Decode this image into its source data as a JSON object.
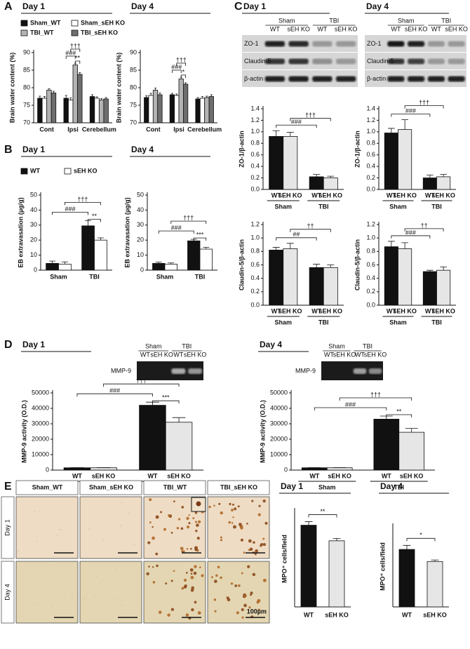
{
  "panels": [
    "A",
    "B",
    "C",
    "D",
    "E"
  ],
  "chart_data": [
    {
      "type": "bar",
      "title": "Day 1",
      "ylabel": "Brain water content (%)",
      "categories": [
        "Cont",
        "Ipsi",
        "Cerebellum"
      ],
      "series": [
        {
          "name": "Sham_WT",
          "color": "#111111",
          "values": [
            77,
            77,
            77.5
          ],
          "errors": [
            0.6,
            0.8,
            0.5
          ]
        },
        {
          "name": "Sham_sEH KO",
          "color": "#ffffff",
          "values": [
            77,
            76.5,
            77
          ],
          "errors": [
            0.5,
            0.6,
            0.4
          ]
        },
        {
          "name": "TBI_WT",
          "color": "#b3b3b3",
          "values": [
            79.3,
            86.5,
            76.5
          ],
          "errors": [
            0.4,
            0.5,
            0.4
          ]
        },
        {
          "name": "TBI_sEH KO",
          "color": "#6e6e6e",
          "values": [
            78.5,
            83.8,
            76.8
          ],
          "errors": [
            0.5,
            0.5,
            0.4
          ]
        }
      ],
      "ylim": [
        70,
        90
      ],
      "yticks": [
        70,
        75,
        80,
        85,
        90
      ],
      "annotations": [
        "###",
        "**",
        "†††"
      ],
      "legend": "top"
    },
    {
      "type": "bar",
      "title": "Day 4",
      "ylabel": "Brain water content (%)",
      "categories": [
        "Cont",
        "Ipsi",
        "Cerebellum"
      ],
      "series": [
        {
          "color": "#111111",
          "values": [
            77.2,
            78,
            76.8
          ],
          "errors": [
            0.5,
            0.4,
            0.4
          ]
        },
        {
          "color": "#ffffff",
          "values": [
            77.8,
            77.8,
            77
          ],
          "errors": [
            0.6,
            0.4,
            0.5
          ]
        },
        {
          "color": "#b3b3b3",
          "values": [
            79.3,
            82.5,
            77.2
          ],
          "errors": [
            0.6,
            0.5,
            0.4
          ]
        },
        {
          "color": "#6e6e6e",
          "values": [
            78,
            81,
            77.5
          ],
          "errors": [
            0.5,
            0.4,
            0.5
          ]
        }
      ],
      "ylim": [
        70,
        90
      ],
      "yticks": [
        70,
        75,
        80,
        85,
        90
      ],
      "annotations": [
        "###",
        "*",
        "†††"
      ]
    },
    {
      "type": "bar",
      "title": "Day 1",
      "ylabel": "EB extravasation (µg/g)",
      "categories": [
        "Sham",
        "TBI"
      ],
      "series": [
        {
          "name": "WT",
          "color": "#111111",
          "values": [
            4.5,
            29.5
          ],
          "errors": [
            1.5,
            3.5
          ]
        },
        {
          "name": "sEH KO",
          "color": "#ffffff",
          "values": [
            4,
            20
          ],
          "errors": [
            1.5,
            1.5
          ]
        }
      ],
      "ylim": [
        0,
        50
      ],
      "yticks": [
        0,
        10,
        20,
        30,
        40,
        50
      ],
      "annotations": [
        "###",
        "†††",
        "**"
      ],
      "legend": "top"
    },
    {
      "type": "bar",
      "title": "Day 4",
      "ylabel": "EB extravasation (µg/g)",
      "categories": [
        "Sham",
        "TBI"
      ],
      "series": [
        {
          "color": "#111111",
          "values": [
            4.5,
            19.5
          ],
          "errors": [
            0.8,
            1
          ]
        },
        {
          "color": "#ffffff",
          "values": [
            4,
            14
          ],
          "errors": [
            0.8,
            1.2
          ]
        }
      ],
      "ylim": [
        0,
        50
      ],
      "yticks": [
        0,
        10,
        20,
        30,
        40,
        50
      ],
      "annotations": [
        "###",
        "†††",
        "***"
      ]
    },
    {
      "type": "bar",
      "ylabel": "ZO-1/β-actin",
      "categories": [
        "Sham",
        "TBI"
      ],
      "bar_labels": [
        "WT",
        "sEH KO"
      ],
      "series": [
        {
          "color": "#111111",
          "values": [
            0.92,
            0.22
          ],
          "errors": [
            0.1,
            0.04
          ]
        },
        {
          "color": "#e6e6e6",
          "values": [
            0.92,
            0.2
          ],
          "errors": [
            0.07,
            0.03
          ]
        }
      ],
      "ylim": [
        0,
        1.4
      ],
      "yticks": [
        {
          "value": 0,
          "label": "0.0"
        },
        0.2,
        0.4,
        0.6,
        0.8,
        {
          "value": 1,
          "label": "1.0"
        },
        1.2,
        1.4
      ],
      "annotations": [
        "###",
        "†††"
      ]
    },
    {
      "type": "bar",
      "ylabel": "ZO-1/β-actin",
      "categories": [
        "Sham",
        "TBI"
      ],
      "bar_labels": [
        "WT",
        "sEH KO"
      ],
      "series": [
        {
          "color": "#111111",
          "values": [
            0.98,
            0.2
          ],
          "errors": [
            0.08,
            0.05
          ]
        },
        {
          "color": "#e6e6e6",
          "values": [
            1.04,
            0.22
          ],
          "errors": [
            0.17,
            0.04
          ]
        }
      ],
      "ylim": [
        0,
        1.4
      ],
      "yticks": [
        {
          "value": 0,
          "label": "0.0"
        },
        0.2,
        0.4,
        0.6,
        0.8,
        {
          "value": 1,
          "label": "1.0"
        },
        1.2,
        1.4
      ],
      "annotations": [
        "###",
        "†††"
      ]
    },
    {
      "type": "bar",
      "ylabel": "Claudin-5/β-actin",
      "categories": [
        "Sham",
        "TBI"
      ],
      "bar_labels": [
        "WT",
        "sEH KO"
      ],
      "series": [
        {
          "color": "#111111",
          "values": [
            0.82,
            0.56
          ],
          "errors": [
            0.04,
            0.05
          ]
        },
        {
          "color": "#e6e6e6",
          "values": [
            0.84,
            0.56
          ],
          "errors": [
            0.08,
            0.04
          ]
        }
      ],
      "ylim": [
        0,
        1.2
      ],
      "yticks": [
        {
          "value": 0,
          "label": "0.0"
        },
        0.2,
        0.4,
        0.6,
        0.8,
        {
          "value": 1,
          "label": "1.0"
        },
        1.2
      ],
      "annotations": [
        "##",
        "††"
      ]
    },
    {
      "type": "bar",
      "ylabel": "Claudin-5/β-actin",
      "categories": [
        "Sham",
        "TBI"
      ],
      "bar_labels": [
        "WT",
        "sEH KO"
      ],
      "series": [
        {
          "color": "#111111",
          "values": [
            0.87,
            0.5
          ],
          "errors": [
            0.08,
            0.02
          ]
        },
        {
          "color": "#e6e6e6",
          "values": [
            0.84,
            0.52
          ],
          "errors": [
            0.09,
            0.05
          ]
        }
      ],
      "ylim": [
        0,
        1.2
      ],
      "yticks": [
        {
          "value": 0,
          "label": "0.0"
        },
        0.2,
        0.4,
        0.6,
        0.8,
        {
          "value": 1,
          "label": "1.0"
        },
        1.2
      ],
      "annotations": [
        "###",
        "††"
      ]
    },
    {
      "type": "bar",
      "title": "Day 1",
      "ylabel": "MMP-9 activity (O.D.)",
      "categories": [
        "Sham",
        "TBI"
      ],
      "bar_labels": [
        "WT",
        "sEH KO"
      ],
      "series": [
        {
          "color": "#111111",
          "values": [
            1500,
            42000
          ],
          "errors": [
            100,
            2000
          ]
        },
        {
          "color": "#e6e6e6",
          "values": [
            1500,
            31000
          ],
          "errors": [
            100,
            3000
          ]
        }
      ],
      "ylim": [
        0,
        50000
      ],
      "yticks": [
        0,
        10000,
        20000,
        30000,
        40000,
        50000
      ],
      "annotations": [
        "###",
        "†††",
        "***"
      ]
    },
    {
      "type": "bar",
      "title": "Day 4",
      "ylabel": "MMP-9 activity (O.D.)",
      "categories": [
        "Sham",
        "TBI"
      ],
      "bar_labels": [
        "WT",
        "sEH KO"
      ],
      "series": [
        {
          "color": "#111111",
          "values": [
            1500,
            33000
          ],
          "errors": [
            100,
            2000
          ]
        },
        {
          "color": "#e6e6e6",
          "values": [
            1500,
            24500
          ],
          "errors": [
            100,
            2500
          ]
        }
      ],
      "ylim": [
        0,
        50000
      ],
      "yticks": [
        0,
        10000,
        20000,
        30000,
        40000,
        50000
      ],
      "annotations": [
        "###",
        "†††",
        "**"
      ]
    },
    {
      "type": "bar",
      "title": "Day 1",
      "ylabel": "MPO⁺ cells/field",
      "categories": [
        "WT",
        "sEH KO"
      ],
      "values": [
        68,
        55
      ],
      "errors": [
        3,
        2
      ],
      "colors": [
        "#111111",
        "#e6e6e6"
      ],
      "ylim": [
        0,
        80
      ],
      "annotations": [
        "**"
      ]
    },
    {
      "type": "bar",
      "title": "Day 4",
      "ylabel": "MPO⁺ cells/field",
      "categories": [
        "WT",
        "sEH KO"
      ],
      "values": [
        57,
        45
      ],
      "errors": [
        4,
        1.5
      ],
      "colors": [
        "#111111",
        "#e6e6e6"
      ],
      "ylim": [
        0,
        80
      ],
      "annotations": [
        "*"
      ]
    }
  ],
  "blots": [
    {
      "title": "Day 1",
      "groups": [
        "Sham",
        "TBI"
      ],
      "lanes": [
        "WT",
        "sEH KO",
        "WT",
        "sEH KO"
      ],
      "rows": [
        "ZO-1",
        "Claudin-5",
        "β-actin"
      ]
    },
    {
      "title": "Day 4",
      "groups": [
        "Sham",
        "TBI"
      ],
      "lanes": [
        "WT",
        "sEH KO",
        "WT",
        "sEH KO"
      ],
      "rows": [
        "ZO-1",
        "Claudin-5",
        "β-actin"
      ]
    },
    {
      "groups": [
        "Sham",
        "TBI"
      ],
      "lanes": [
        "WT",
        "sEH KO",
        "WT",
        "sEH KO"
      ],
      "rows": [
        "MMP-9"
      ]
    },
    {
      "groups": [
        "Sham",
        "TBI"
      ],
      "lanes": [
        "WT",
        "sEH KO",
        "WT",
        "sEH KO"
      ],
      "rows": [
        "MMP-9"
      ]
    }
  ],
  "micrographs": {
    "columns": [
      "Sham_WT",
      "Sham_sEH KO",
      "TBI_WT",
      "TBI_sEH KO"
    ],
    "rows": [
      "Day 1",
      "Day 4"
    ],
    "scale_bar": "100µm"
  }
}
